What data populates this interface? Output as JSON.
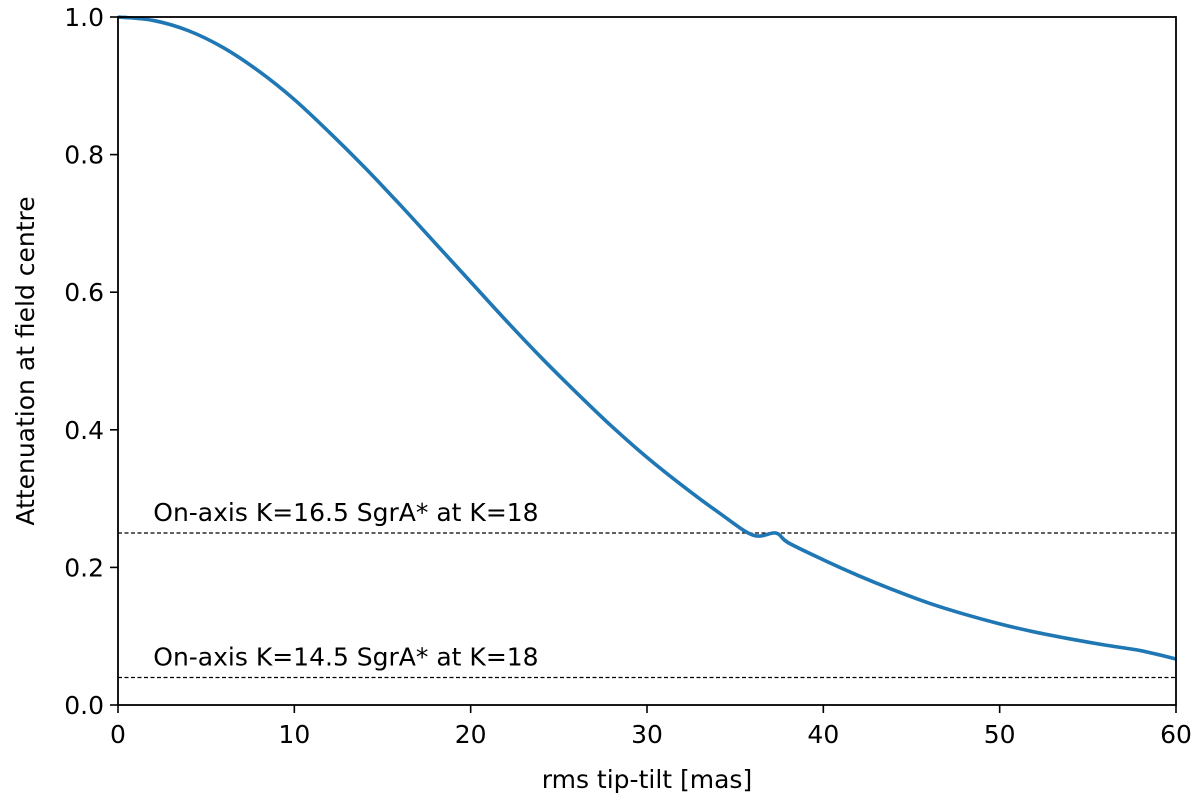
{
  "chart_data": {
    "type": "line",
    "title": "",
    "xlabel": "rms tip-tilt [mas]",
    "ylabel": "Attenuation at field centre",
    "xlim": [
      0,
      60
    ],
    "ylim": [
      0,
      1.0
    ],
    "grid": false,
    "xticks": [
      0,
      10,
      20,
      30,
      40,
      50,
      60
    ],
    "xtick_labels": [
      "0",
      "10",
      "20",
      "30",
      "40",
      "50",
      "60"
    ],
    "yticks": [
      0.0,
      0.2,
      0.4,
      0.6,
      0.8,
      1.0
    ],
    "ytick_labels": [
      "0.0",
      "0.2",
      "0.4",
      "0.6",
      "0.8",
      "1.0"
    ],
    "series": [
      {
        "color": "#1f77b4",
        "x": [
          0,
          2,
          4,
          6,
          8,
          10,
          12,
          14,
          16,
          18,
          20,
          22,
          24,
          26,
          28,
          30,
          32,
          34,
          36,
          37.3,
          38,
          40,
          42,
          44,
          46,
          48,
          50,
          52,
          54,
          56,
          58,
          60
        ],
        "y": [
          1.0,
          0.995,
          0.98,
          0.955,
          0.921,
          0.88,
          0.832,
          0.781,
          0.727,
          0.671,
          0.615,
          0.559,
          0.505,
          0.454,
          0.405,
          0.36,
          0.319,
          0.281,
          0.247,
          0.25,
          0.236,
          0.211,
          0.188,
          0.167,
          0.148,
          0.132,
          0.118,
          0.106,
          0.096,
          0.087,
          0.079,
          0.067
        ]
      }
    ],
    "reference_lines": [
      {
        "y": 0.25,
        "label": "On-axis K=16.5 SgrA* at K=18",
        "style": "dashed",
        "color": "#000000"
      },
      {
        "y": 0.04,
        "label": "On-axis K=14.5 SgrA* at K=18",
        "style": "dashed",
        "color": "#000000"
      }
    ]
  }
}
